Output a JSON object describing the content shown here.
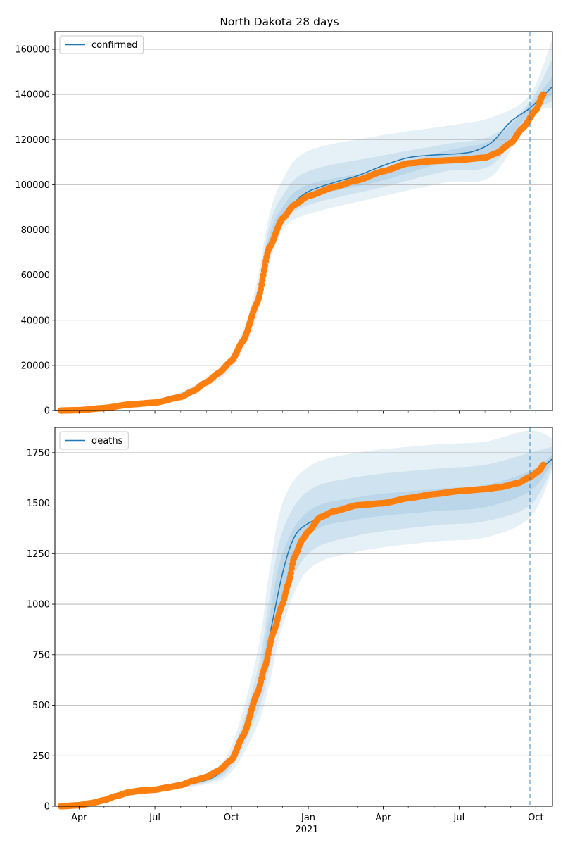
{
  "title": "North Dakota 28 days",
  "year_label": "2021",
  "colors": {
    "model": "#1f77b4",
    "observed": "#ff7f0e",
    "band": "#1f77b4",
    "grid": "#b0b0b0"
  },
  "x_axis": {
    "ticks": [
      "Apr",
      "Jul",
      "Oct",
      "Jan",
      "Apr",
      "Jul",
      "Oct"
    ],
    "tick_dates": [
      "2020-04-01",
      "2020-07-01",
      "2020-10-01",
      "2021-01-01",
      "2021-04-01",
      "2021-07-01",
      "2021-10-01"
    ],
    "range": [
      "2020-03-03",
      "2021-10-21"
    ],
    "forecast_start": "2021-09-24"
  },
  "chart_data": [
    {
      "type": "line",
      "legend": "confirmed",
      "legend_position": "top-left",
      "grid": "horizontal",
      "ylim": [
        0,
        167800
      ],
      "yticks": [
        0,
        20000,
        40000,
        60000,
        80000,
        100000,
        120000,
        140000,
        160000
      ],
      "ytick_labels": [
        "0",
        "20000",
        "40000",
        "60000",
        "80000",
        "100000",
        "120000",
        "140000",
        "160000"
      ],
      "model_curve": {
        "x": [
          "2020-03-03",
          "2020-05-01",
          "2020-07-01",
          "2020-08-15",
          "2020-09-15",
          "2020-10-01",
          "2020-10-15",
          "2020-11-01",
          "2020-11-15",
          "2020-12-01",
          "2020-12-15",
          "2021-01-01",
          "2021-02-01",
          "2021-03-01",
          "2021-04-01",
          "2021-05-01",
          "2021-06-01",
          "2021-07-01",
          "2021-07-20",
          "2021-08-10",
          "2021-09-01",
          "2021-09-24",
          "2021-10-21"
        ],
        "y": [
          0,
          1500,
          3500,
          8500,
          16000,
          22000,
          31000,
          49000,
          72000,
          86000,
          92000,
          97000,
          101000,
          104000,
          108500,
          112000,
          113200,
          113800,
          115000,
          119000,
          128000,
          134000,
          143500
        ]
      },
      "bands": [
        {
          "name": "outer",
          "x": [
            "2020-03-03",
            "2020-07-01",
            "2020-09-15",
            "2020-10-15",
            "2020-11-01",
            "2020-11-15",
            "2020-12-01",
            "2021-01-01",
            "2021-04-01",
            "2021-06-15",
            "2021-08-10",
            "2021-09-24",
            "2021-10-21"
          ],
          "upper": [
            0,
            4200,
            18500,
            36000,
            58000,
            86000,
            102000,
            115000,
            122000,
            126000,
            130000,
            140000,
            165000
          ],
          "lower": [
            0,
            3000,
            13500,
            27000,
            42000,
            64000,
            80000,
            87000,
            95000,
            101000,
            104000,
            130000,
            134000
          ]
        },
        {
          "name": "middle",
          "x": [
            "2020-03-03",
            "2020-07-01",
            "2020-09-15",
            "2020-10-15",
            "2020-11-01",
            "2020-11-15",
            "2020-12-01",
            "2021-01-01",
            "2021-04-01",
            "2021-06-15",
            "2021-08-10",
            "2021-09-24",
            "2021-10-21"
          ],
          "upper": [
            0,
            3900,
            17500,
            34000,
            54000,
            81000,
            95000,
            106000,
            113000,
            118000,
            122000,
            137000,
            156000
          ],
          "lower": [
            0,
            3150,
            14500,
            28500,
            45000,
            67000,
            83000,
            91000,
            99000,
            106000,
            109000,
            131000,
            137000
          ]
        },
        {
          "name": "inner",
          "x": [
            "2020-03-03",
            "2020-07-01",
            "2020-09-15",
            "2020-10-15",
            "2020-11-01",
            "2020-11-15",
            "2020-12-01",
            "2021-01-01",
            "2021-04-01",
            "2021-06-15",
            "2021-08-10",
            "2021-09-24",
            "2021-10-21"
          ],
          "upper": [
            0,
            3700,
            16800,
            32500,
            51500,
            77000,
            90000,
            100000,
            107000,
            115000,
            120000,
            135500,
            148000
          ],
          "lower": [
            0,
            3300,
            15200,
            29500,
            46500,
            69000,
            85000,
            94000,
            102000,
            110000,
            113000,
            132000,
            140000
          ]
        }
      ],
      "observed": {
        "x": [
          "2020-03-10",
          "2020-04-01",
          "2020-05-01",
          "2020-06-01",
          "2020-07-01",
          "2020-08-01",
          "2020-08-15",
          "2020-09-01",
          "2020-09-15",
          "2020-10-01",
          "2020-10-15",
          "2020-11-01",
          "2020-11-15",
          "2020-12-01",
          "2020-12-15",
          "2021-01-01",
          "2021-02-01",
          "2021-03-01",
          "2021-04-01",
          "2021-05-01",
          "2021-06-01",
          "2021-07-01",
          "2021-08-01",
          "2021-08-15",
          "2021-09-01",
          "2021-09-15",
          "2021-10-01",
          "2021-10-10"
        ],
        "y": [
          0,
          150,
          1100,
          2700,
          3500,
          6000,
          8500,
          12500,
          16500,
          22000,
          31000,
          48000,
          72000,
          85000,
          91000,
          95000,
          99000,
          102000,
          106000,
          109500,
          110500,
          111000,
          112000,
          114000,
          118500,
          125000,
          133000,
          140000
        ]
      }
    },
    {
      "type": "line",
      "legend": "deaths",
      "legend_position": "top-left",
      "grid": "horizontal",
      "ylim": [
        0,
        1875
      ],
      "yticks": [
        0,
        250,
        500,
        750,
        1000,
        1250,
        1500,
        1750
      ],
      "ytick_labels": [
        "0",
        "250",
        "500",
        "750",
        "1000",
        "1250",
        "1500",
        "1750"
      ],
      "model_curve": {
        "x": [
          "2020-03-03",
          "2020-04-01",
          "2020-05-01",
          "2020-06-01",
          "2020-07-01",
          "2020-08-01",
          "2020-09-01",
          "2020-09-15",
          "2020-10-01",
          "2020-10-15",
          "2020-11-01",
          "2020-11-15",
          "2020-12-01",
          "2020-12-15",
          "2021-01-01",
          "2021-02-01",
          "2021-03-01",
          "2021-04-01",
          "2021-05-01",
          "2021-06-01",
          "2021-07-01",
          "2021-08-01",
          "2021-09-01",
          "2021-09-24",
          "2021-10-21"
        ],
        "y": [
          0,
          5,
          35,
          70,
          80,
          100,
          130,
          160,
          230,
          350,
          560,
          830,
          1150,
          1330,
          1400,
          1450,
          1480,
          1500,
          1520,
          1540,
          1560,
          1570,
          1590,
          1630,
          1720
        ]
      },
      "bands": [
        {
          "name": "outer",
          "x": [
            "2020-03-03",
            "2020-07-01",
            "2020-09-01",
            "2020-10-01",
            "2020-11-01",
            "2020-11-15",
            "2020-12-01",
            "2021-01-01",
            "2021-03-01",
            "2021-06-01",
            "2021-08-01",
            "2021-09-24",
            "2021-10-21"
          ],
          "upper": [
            0,
            90,
            165,
            300,
            760,
            1150,
            1500,
            1680,
            1750,
            1790,
            1805,
            1860,
            1820
          ],
          "lower": [
            0,
            75,
            110,
            170,
            400,
            600,
            890,
            1170,
            1260,
            1310,
            1330,
            1430,
            1660
          ]
        },
        {
          "name": "middle",
          "x": [
            "2020-03-03",
            "2020-07-01",
            "2020-09-01",
            "2020-10-01",
            "2020-11-01",
            "2020-11-15",
            "2020-12-01",
            "2021-01-01",
            "2021-03-01",
            "2021-06-01",
            "2021-08-01",
            "2021-09-24",
            "2021-10-21"
          ],
          "upper": [
            0,
            86,
            150,
            265,
            670,
            1020,
            1360,
            1560,
            1630,
            1670,
            1690,
            1750,
            1780
          ],
          "lower": [
            0,
            77,
            118,
            195,
            460,
            680,
            990,
            1250,
            1340,
            1390,
            1410,
            1490,
            1680
          ]
        },
        {
          "name": "inner",
          "x": [
            "2020-03-03",
            "2020-07-01",
            "2020-09-01",
            "2020-10-01",
            "2020-11-01",
            "2020-11-15",
            "2020-12-01",
            "2021-01-01",
            "2021-03-01",
            "2021-06-01",
            "2021-08-01",
            "2021-09-24",
            "2021-10-21"
          ],
          "upper": [
            0,
            83,
            140,
            245,
            610,
            930,
            1250,
            1460,
            1530,
            1570,
            1590,
            1660,
            1740
          ],
          "lower": [
            0,
            79,
            125,
            215,
            510,
            750,
            1050,
            1340,
            1420,
            1460,
            1480,
            1560,
            1700
          ]
        }
      ],
      "observed": {
        "x": [
          "2020-03-10",
          "2020-04-01",
          "2020-04-15",
          "2020-05-01",
          "2020-05-15",
          "2020-06-01",
          "2020-06-15",
          "2020-07-01",
          "2020-07-15",
          "2020-08-01",
          "2020-08-15",
          "2020-09-01",
          "2020-09-15",
          "2020-10-01",
          "2020-10-15",
          "2020-11-01",
          "2020-11-10",
          "2020-11-20",
          "2020-12-01",
          "2020-12-08",
          "2020-12-15",
          "2020-12-25",
          "2021-01-01",
          "2021-01-15",
          "2021-02-01",
          "2021-03-01",
          "2021-04-01",
          "2021-05-01",
          "2021-06-01",
          "2021-07-01",
          "2021-08-01",
          "2021-08-20",
          "2021-09-10",
          "2021-09-24",
          "2021-10-05",
          "2021-10-10"
        ],
        "y": [
          0,
          5,
          15,
          30,
          50,
          70,
          78,
          82,
          92,
          105,
          125,
          145,
          175,
          230,
          350,
          560,
          690,
          860,
          1000,
          1100,
          1230,
          1320,
          1360,
          1430,
          1460,
          1490,
          1500,
          1525,
          1545,
          1560,
          1570,
          1580,
          1600,
          1630,
          1660,
          1690
        ]
      }
    }
  ]
}
